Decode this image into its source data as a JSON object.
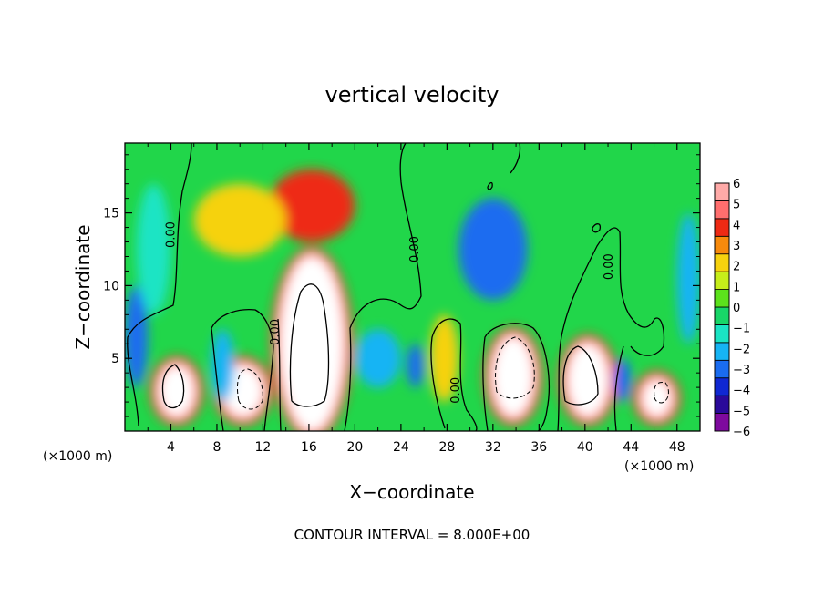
{
  "chart_data": {
    "type": "heatmap",
    "title": "vertical velocity",
    "xlabel": "X−coordinate",
    "ylabel": "Z−coordinate",
    "x_unit_left": "(×1000 m)",
    "x_unit_right": "(×1000 m)",
    "footer": "CONTOUR INTERVAL = 8.000E+00",
    "xlim": [
      0,
      50
    ],
    "ylim": [
      0,
      19.8
    ],
    "xticks": [
      4,
      8,
      12,
      16,
      20,
      24,
      28,
      32,
      36,
      40,
      44,
      48
    ],
    "xticks_minor": [
      2,
      6,
      10,
      14,
      18,
      22,
      26,
      30,
      34,
      38,
      42,
      46,
      50
    ],
    "yticks": [
      5,
      10,
      15
    ],
    "contour_labels": [
      {
        "text": "0.00",
        "x": 4.3,
        "z": 13.5,
        "rotation": -90
      },
      {
        "text": "0.00",
        "x": 13.4,
        "z": 6.8,
        "rotation": -90
      },
      {
        "text": "0.00",
        "x": 25.5,
        "z": 12.5,
        "rotation": -90
      },
      {
        "text": "0.00",
        "x": 29.1,
        "z": 2.8,
        "rotation": -90
      },
      {
        "text": "0.00",
        "x": 42.4,
        "z": 11.3,
        "rotation": -90
      }
    ],
    "colorbar": {
      "levels": [
        -6,
        -5,
        -4,
        -3,
        -2,
        -1,
        0,
        1,
        2,
        3,
        4,
        5,
        6
      ],
      "tick_labels": [
        "6",
        "5",
        "4",
        "3",
        "2",
        "1",
        "0",
        "−1",
        "−2",
        "−3",
        "−4",
        "−5",
        "−6"
      ],
      "colors": [
        "#7e0a9e",
        "#2a0a9a",
        "#1028d2",
        "#1a6cf0",
        "#16b4f4",
        "#1ae4c4",
        "#18d668",
        "#5ce21c",
        "#c6ee1a",
        "#f6d20e",
        "#f78a0c",
        "#ee2a14",
        "#ff6e6e",
        "#ffaaa8"
      ]
    },
    "cells": [
      {
        "x": [
          0,
          2
        ],
        "z": [
          3,
          10
        ],
        "w": -3.5
      },
      {
        "x": [
          1,
          4
        ],
        "z": [
          8,
          17
        ],
        "w": -2
      },
      {
        "x": [
          3,
          6
        ],
        "z": [
          1,
          4.5
        ],
        "w": 6.5
      },
      {
        "x": [
          8.5,
          12
        ],
        "z": [
          1,
          4.5
        ],
        "w": 6.5
      },
      {
        "x": [
          7.5,
          9.5
        ],
        "z": [
          2,
          7
        ],
        "w": -3
      },
      {
        "x": [
          13.5,
          19
        ],
        "z": [
          0,
          12
        ],
        "w": 6.5
      },
      {
        "x": [
          12.5,
          20
        ],
        "z": [
          13,
          18
        ],
        "w": 4
      },
      {
        "x": [
          6,
          14
        ],
        "z": [
          12,
          17
        ],
        "w": 2.5
      },
      {
        "x": [
          20,
          24
        ],
        "z": [
          3,
          7
        ],
        "w": -3
      },
      {
        "x": [
          24.5,
          26
        ],
        "z": [
          3,
          6
        ],
        "w": -4
      },
      {
        "x": [
          26.5,
          29
        ],
        "z": [
          2,
          8
        ],
        "w": 2
      },
      {
        "x": [
          29,
          35
        ],
        "z": [
          9,
          16
        ],
        "w": -4
      },
      {
        "x": [
          32,
          35.5
        ],
        "z": [
          1,
          6.5
        ],
        "w": 6.5
      },
      {
        "x": [
          38.5,
          42
        ],
        "z": [
          1,
          6
        ],
        "w": 6.5
      },
      {
        "x": [
          42.5,
          44
        ],
        "z": [
          2,
          5
        ],
        "w": -4
      },
      {
        "x": [
          45,
          47.5
        ],
        "z": [
          1,
          3.5
        ],
        "w": 6.5
      },
      {
        "x": [
          48,
          50
        ],
        "z": [
          6,
          15
        ],
        "w": -3
      }
    ]
  }
}
